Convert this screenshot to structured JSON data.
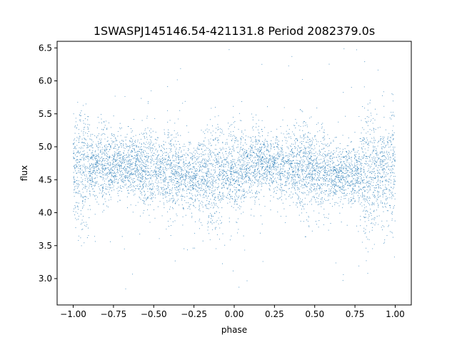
{
  "chart_data": {
    "type": "scatter",
    "title": "1SWASPJ145146.54-421131.8 Period 2082379.0s",
    "xlabel": "phase",
    "ylabel": "flux",
    "xlim": [
      -1.1,
      1.1
    ],
    "ylim": [
      2.6,
      6.6
    ],
    "x_ticks": [
      -1.0,
      -0.75,
      -0.5,
      -0.25,
      0.0,
      0.25,
      0.5,
      0.75,
      1.0
    ],
    "x_tick_labels": [
      "−1.00",
      "−0.75",
      "−0.50",
      "−0.25",
      "0.00",
      "0.25",
      "0.50",
      "0.75",
      "1.00"
    ],
    "y_ticks": [
      3.0,
      3.5,
      4.0,
      4.5,
      5.0,
      5.5,
      6.0,
      6.5
    ],
    "y_tick_labels": [
      "3.0",
      "3.5",
      "4.0",
      "4.5",
      "5.0",
      "5.5",
      "6.0",
      "6.5"
    ],
    "grid": false,
    "legend": "none",
    "series": [
      {
        "color": "#1f77b4",
        "marker": "point",
        "x_range": [
          -1.0,
          1.0
        ],
        "central_flux": 4.65,
        "typical_flux_range": [
          3.7,
          5.7
        ],
        "outlier_flux_range": [
          2.8,
          6.5
        ]
      }
    ]
  }
}
